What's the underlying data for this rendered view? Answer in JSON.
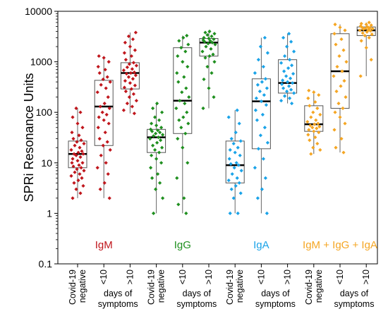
{
  "chart_data": {
    "type": "box",
    "ylabel": "SPRi Resonance Units",
    "yscale": "log",
    "ylim": [
      0.1,
      10000
    ],
    "yticks": [
      "0.1",
      "1",
      "10",
      "100",
      "1000",
      "10000"
    ],
    "grid": false,
    "legend": "none",
    "groups": [
      {
        "name": "IgM",
        "color": "#c0161c"
      },
      {
        "name": "IgG",
        "color": "#1f8f1f"
      },
      {
        "name": "IgA",
        "color": "#1aa3e8"
      },
      {
        "name": "IgM + IgG + IgA",
        "color": "#f5a623"
      }
    ],
    "categories": [
      {
        "lines": [
          "Covid-19",
          "negative"
        ]
      },
      {
        "lines": [
          "<10"
        ],
        "caption": [
          "days of",
          "symptoms"
        ]
      },
      {
        "lines": [
          ">10"
        ]
      }
    ],
    "boxes": [
      {
        "group": 0,
        "cat": 0,
        "min": 2,
        "q1": 8,
        "median": 15,
        "q3": 27,
        "max": 120,
        "points": [
          2,
          2.5,
          3,
          3.5,
          4,
          4.5,
          5,
          5.5,
          6,
          6.5,
          7,
          7.5,
          8,
          8.5,
          9,
          10,
          10,
          11,
          12,
          13,
          14,
          15,
          15,
          16,
          17,
          18,
          20,
          22,
          24,
          26,
          28,
          30,
          35,
          40,
          50,
          60,
          80,
          100,
          120
        ]
      },
      {
        "group": 0,
        "cat": 1,
        "min": 2,
        "q1": 22,
        "median": 130,
        "q3": 430,
        "max": 1300,
        "points": [
          2,
          3,
          4,
          6,
          8,
          10,
          14,
          18,
          22,
          26,
          30,
          40,
          50,
          60,
          70,
          80,
          90,
          100,
          120,
          130,
          150,
          200,
          250,
          300,
          350,
          400,
          450,
          500,
          600,
          700,
          800,
          1000,
          1200,
          1300
        ]
      },
      {
        "group": 0,
        "cat": 2,
        "min": 95,
        "q1": 290,
        "median": 600,
        "q3": 960,
        "max": 3800,
        "points": [
          95,
          110,
          130,
          150,
          170,
          200,
          230,
          260,
          290,
          310,
          340,
          380,
          420,
          460,
          500,
          540,
          580,
          600,
          620,
          680,
          720,
          780,
          840,
          900,
          960,
          1100,
          1300,
          1500,
          1700,
          2000,
          2400,
          2800,
          3200,
          3800
        ]
      },
      {
        "group": 1,
        "cat": 0,
        "min": 1,
        "q1": 16,
        "median": 32,
        "q3": 46,
        "max": 150,
        "points": [
          1,
          2,
          3,
          4,
          5,
          6,
          8,
          10,
          12,
          14,
          16,
          18,
          20,
          22,
          25,
          28,
          30,
          32,
          34,
          36,
          38,
          40,
          42,
          44,
          46,
          50,
          55,
          60,
          70,
          80,
          100,
          120,
          150
        ]
      },
      {
        "group": 1,
        "cat": 1,
        "min": 1,
        "q1": 38,
        "median": 170,
        "q3": 1900,
        "max": 3300,
        "points": [
          1,
          1.5,
          2,
          5,
          10,
          20,
          30,
          38,
          50,
          60,
          70,
          80,
          100,
          120,
          150,
          170,
          200,
          250,
          300,
          400,
          500,
          600,
          800,
          1000,
          1300,
          1600,
          1900,
          2200,
          2600,
          3000,
          3300
        ]
      },
      {
        "group": 1,
        "cat": 2,
        "min": 120,
        "q1": 1300,
        "median": 2400,
        "q3": 2900,
        "max": 4000,
        "points": [
          120,
          200,
          300,
          450,
          600,
          800,
          1000,
          1200,
          1300,
          1400,
          1600,
          1800,
          2000,
          2200,
          2300,
          2400,
          2500,
          2600,
          2700,
          2800,
          2900,
          3000,
          3200,
          3400,
          3600,
          3800,
          4000
        ]
      },
      {
        "group": 2,
        "cat": 0,
        "min": 1,
        "q1": 4,
        "median": 9,
        "q3": 27,
        "max": 110,
        "points": [
          1,
          1,
          2,
          2.5,
          3,
          3.5,
          4,
          4.5,
          5,
          6,
          7,
          8,
          9,
          9.5,
          10,
          12,
          14,
          16,
          18,
          20,
          24,
          27,
          30,
          40,
          60,
          80,
          110
        ]
      },
      {
        "group": 2,
        "cat": 1,
        "min": 1,
        "q1": 19,
        "median": 165,
        "q3": 460,
        "max": 3000,
        "points": [
          1,
          2,
          3,
          5,
          8,
          12,
          19,
          25,
          35,
          50,
          70,
          90,
          110,
          140,
          165,
          190,
          220,
          260,
          300,
          350,
          400,
          460,
          600,
          800,
          1100,
          1500,
          2000,
          3000
        ]
      },
      {
        "group": 2,
        "cat": 2,
        "min": 150,
        "q1": 240,
        "median": 380,
        "q3": 1100,
        "max": 3600,
        "points": [
          150,
          170,
          190,
          210,
          240,
          260,
          280,
          300,
          330,
          360,
          380,
          400,
          430,
          470,
          520,
          580,
          650,
          750,
          850,
          950,
          1100,
          1300,
          1600,
          2000,
          2500,
          3000,
          3600
        ]
      },
      {
        "group": 3,
        "cat": 0,
        "min": 15,
        "q1": 42,
        "median": 58,
        "q3": 135,
        "max": 270,
        "points": [
          15,
          18,
          20,
          24,
          28,
          32,
          36,
          40,
          42,
          45,
          48,
          50,
          52,
          55,
          58,
          60,
          65,
          70,
          80,
          90,
          100,
          120,
          135,
          160,
          190,
          220,
          250,
          270
        ]
      },
      {
        "group": 3,
        "cat": 1,
        "min": 16,
        "q1": 120,
        "median": 650,
        "q3": 3600,
        "max": 5500,
        "points": [
          16,
          20,
          30,
          45,
          60,
          80,
          100,
          120,
          150,
          200,
          260,
          330,
          420,
          520,
          650,
          800,
          1000,
          1300,
          1700,
          2200,
          2800,
          3600,
          4200,
          4800,
          5500
        ]
      },
      {
        "group": 3,
        "cat": 2,
        "min": 520,
        "q1": 3300,
        "median": 4200,
        "q3": 4900,
        "max": 6000,
        "points": [
          520,
          1100,
          1900,
          2600,
          3000,
          3300,
          3500,
          3700,
          3900,
          4100,
          4200,
          4300,
          4400,
          4500,
          4600,
          4700,
          4800,
          4900,
          5100,
          5300,
          5500,
          5700,
          6000
        ]
      }
    ]
  }
}
